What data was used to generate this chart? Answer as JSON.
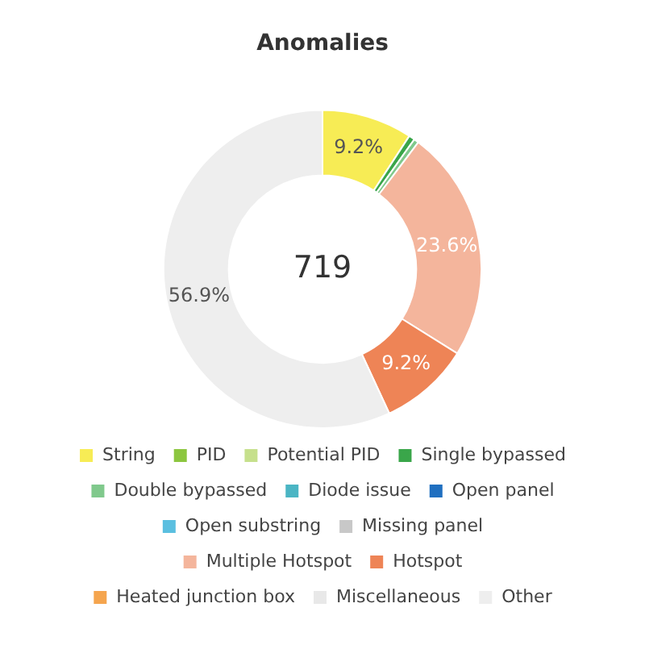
{
  "chart_data": {
    "type": "donut",
    "title": "Anomalies",
    "categories": [
      "String",
      "PID",
      "Potential PID",
      "Single bypassed",
      "Double bypassed",
      "Diode issue",
      "Open panel",
      "Open substring",
      "Missing panel",
      "Multiple Hotspot",
      "Hotspot",
      "Heated junction box",
      "Miscellaneous",
      "Other"
    ],
    "values": [
      9.2,
      0,
      0,
      0.6,
      0.5,
      0,
      0,
      0,
      0,
      23.6,
      9.2,
      0,
      0,
      56.9
    ],
    "colors": [
      "#f7ec55",
      "#8cc63f",
      "#c6e08c",
      "#3aa64a",
      "#80c98c",
      "#4bb5c4",
      "#1f6fc0",
      "#5bbfe0",
      "#c8c8c8",
      "#f4b59c",
      "#ee8456",
      "#f5a54e",
      "#e8e8e8",
      "#eeeeee"
    ],
    "value_labels": [
      "9.2%",
      null,
      null,
      null,
      null,
      null,
      null,
      null,
      null,
      "23.6%",
      "9.2%",
      null,
      null,
      "56.9%"
    ],
    "annotations": [
      "719"
    ],
    "legend": "bottom"
  }
}
